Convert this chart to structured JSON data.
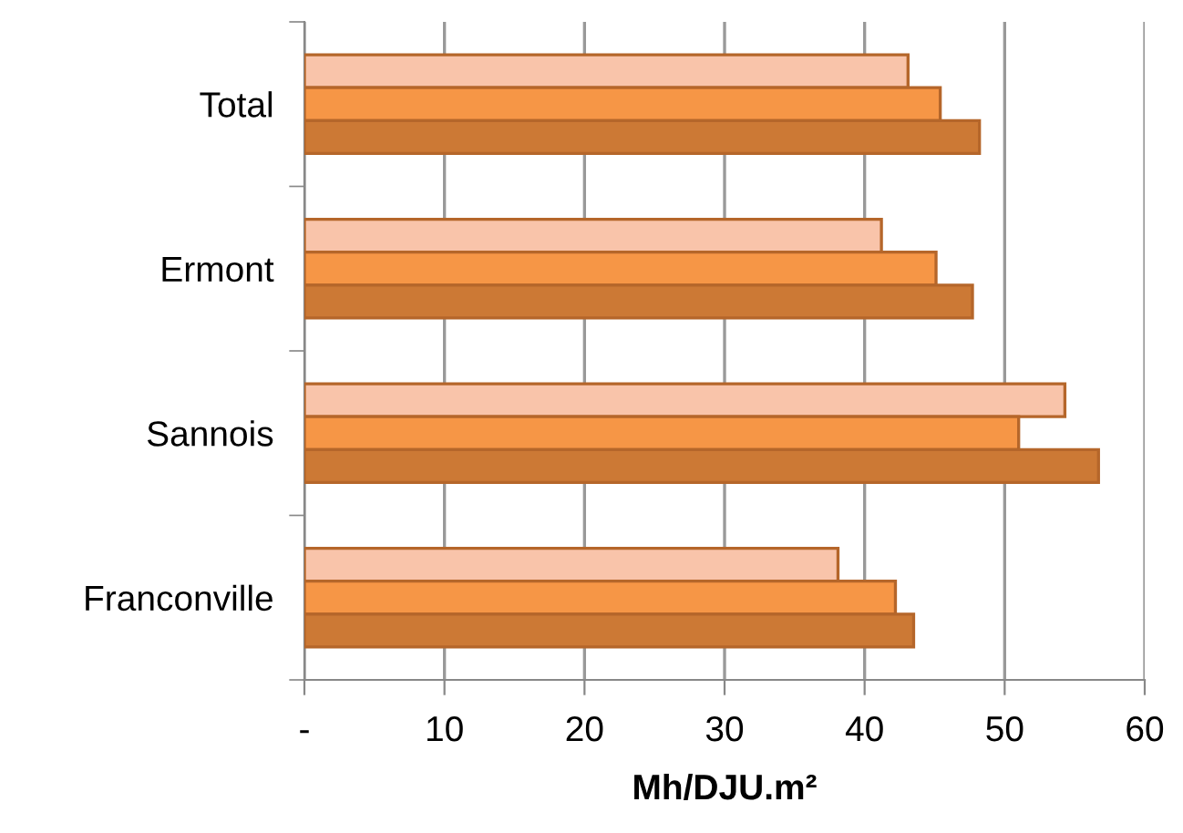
{
  "chart_data": {
    "type": "bar",
    "orientation": "horizontal",
    "xlabel": "Mh/DJU.m²",
    "categories": [
      "Total",
      "Ermont",
      "Sannois",
      "Franconville"
    ],
    "series": [
      {
        "color": "#f9c4aa",
        "values": [
          43.1,
          41.2,
          54.3,
          38.1
        ]
      },
      {
        "color": "#f69646",
        "values": [
          45.4,
          45.1,
          51.0,
          42.2
        ]
      },
      {
        "color": "#cc7935",
        "values": [
          48.2,
          47.7,
          56.7,
          43.5
        ]
      }
    ],
    "xlim": [
      0,
      60
    ],
    "xticks": [
      {
        "value": 0,
        "label": "-"
      },
      10,
      20,
      30,
      40,
      50,
      60
    ],
    "grid": "x",
    "legend": false
  }
}
